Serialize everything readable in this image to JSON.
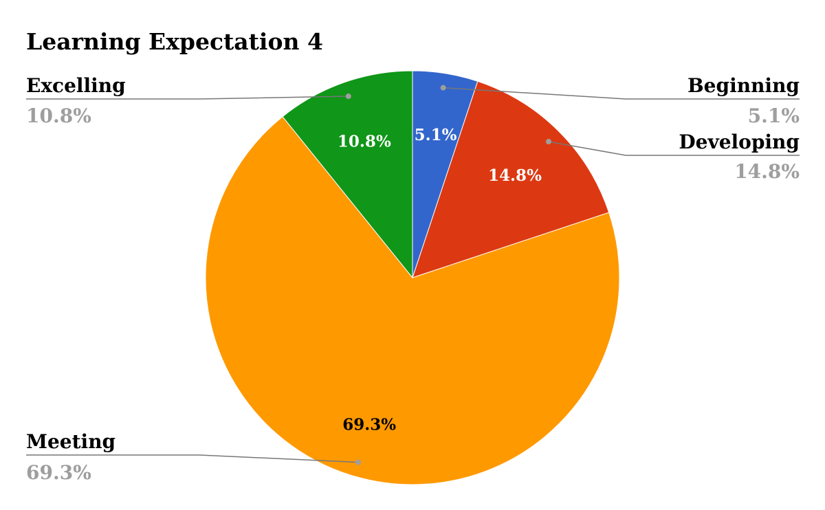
{
  "chart_data": {
    "type": "pie",
    "title": "Learning Expectation 4",
    "start_angle_deg": 0,
    "direction": "clockwise",
    "slices": [
      {
        "label": "Beginning",
        "value": 5.1,
        "display": "5.1%",
        "color": "#3366cc",
        "pct_color": "#ffffff"
      },
      {
        "label": "Developing",
        "value": 14.8,
        "display": "14.8%",
        "color": "#dc3912",
        "pct_color": "#ffffff"
      },
      {
        "label": "Meeting",
        "value": 69.3,
        "display": "69.3%",
        "color": "#ff9900",
        "pct_color": "#000000"
      },
      {
        "label": "Excelling",
        "value": 10.8,
        "display": "10.8%",
        "color": "#109618",
        "pct_color": "#ffffff"
      }
    ],
    "legend": "labels-with-leader-lines"
  }
}
